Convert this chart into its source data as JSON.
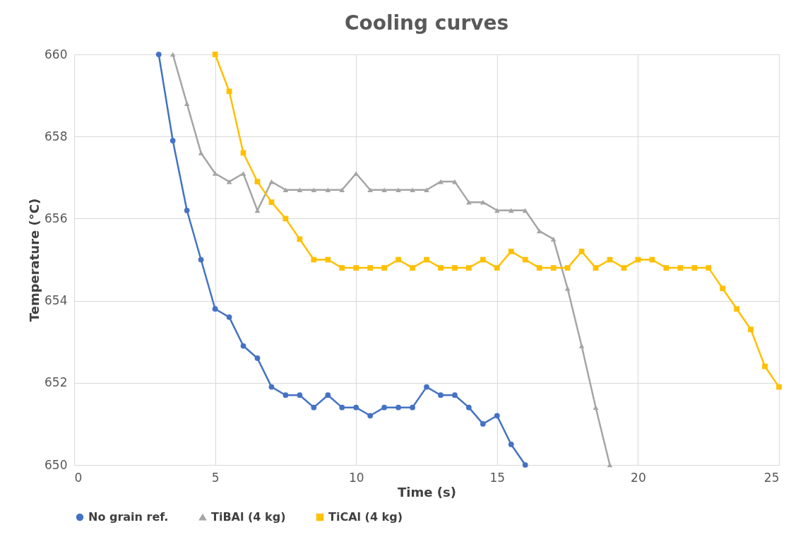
{
  "chart_data": {
    "type": "line",
    "title": "Cooling curves",
    "xlabel": "Time (s)",
    "ylabel": "Temperature (°C)",
    "xlim": [
      0,
      25
    ],
    "xticks": [
      0,
      5,
      10,
      15,
      20,
      25
    ],
    "ylim": [
      650,
      660
    ],
    "yticks": [
      650,
      652,
      654,
      656,
      658,
      660
    ],
    "grid": true,
    "legend": "bottom",
    "line_style": "solid",
    "series": [
      {
        "name": "No grain ref.",
        "color": "#4472c4",
        "marker": "circle",
        "x": [
          3,
          3.5,
          4,
          4.5,
          5,
          5.5,
          6,
          6.5,
          7,
          7.5,
          8,
          8.5,
          9,
          9.5,
          10,
          10.5,
          11,
          11.5,
          12,
          12.5,
          13,
          13.5,
          14,
          14.5,
          15,
          15.5,
          16
        ],
        "values": [
          660,
          657.9,
          656.2,
          655.0,
          653.8,
          653.6,
          652.9,
          652.6,
          651.9,
          651.7,
          651.7,
          651.4,
          651.7,
          651.4,
          651.4,
          651.2,
          651.4,
          651.4,
          651.4,
          651.9,
          651.7,
          651.7,
          651.4,
          651.0,
          651.2,
          650.5,
          650.0
        ]
      },
      {
        "name": "TiBAl (4 kg)",
        "color": "#a5a5a5",
        "marker": "triangle",
        "x": [
          3.5,
          4,
          4.5,
          5,
          5.5,
          6,
          6.5,
          7,
          7.5,
          8,
          8.5,
          9,
          9.5,
          10,
          10.5,
          11,
          11.5,
          12,
          12.5,
          13,
          13.5,
          14,
          14.5,
          15,
          15.5,
          16,
          16.5,
          17,
          17.5,
          18,
          18.5,
          19
        ],
        "values": [
          660,
          658.8,
          657.6,
          657.1,
          656.9,
          657.1,
          656.2,
          656.9,
          656.7,
          656.7,
          656.7,
          656.7,
          656.7,
          657.1,
          656.7,
          656.7,
          656.7,
          656.7,
          656.7,
          656.9,
          656.9,
          656.4,
          656.4,
          656.2,
          656.2,
          656.2,
          655.7,
          655.5,
          654.3,
          652.9,
          651.4,
          650.0
        ]
      },
      {
        "name": "TiCAl (4 kg)",
        "color": "#ffc000",
        "marker": "square",
        "x": [
          5,
          5.5,
          6,
          6.5,
          7,
          7.5,
          8,
          8.5,
          9,
          9.5,
          10,
          10.5,
          11,
          11.5,
          12,
          12.5,
          13,
          13.5,
          14,
          14.5,
          15,
          15.5,
          16,
          16.5,
          17,
          17.5,
          18,
          18.5,
          19,
          19.5,
          20,
          20.5,
          21,
          21.5,
          22,
          22.5,
          23,
          23.5,
          24,
          24.5,
          25
        ],
        "values": [
          660,
          659.1,
          657.6,
          656.9,
          656.4,
          656.0,
          655.5,
          655.0,
          655.0,
          654.8,
          654.8,
          654.8,
          654.8,
          655.0,
          654.8,
          655.0,
          654.8,
          654.8,
          654.8,
          655.0,
          654.8,
          655.2,
          655.0,
          654.8,
          654.8,
          654.8,
          655.2,
          654.8,
          655.0,
          654.8,
          655.0,
          655.0,
          654.8,
          654.8,
          654.8,
          654.8,
          654.3,
          653.8,
          653.3,
          652.4,
          651.9
        ]
      }
    ]
  }
}
